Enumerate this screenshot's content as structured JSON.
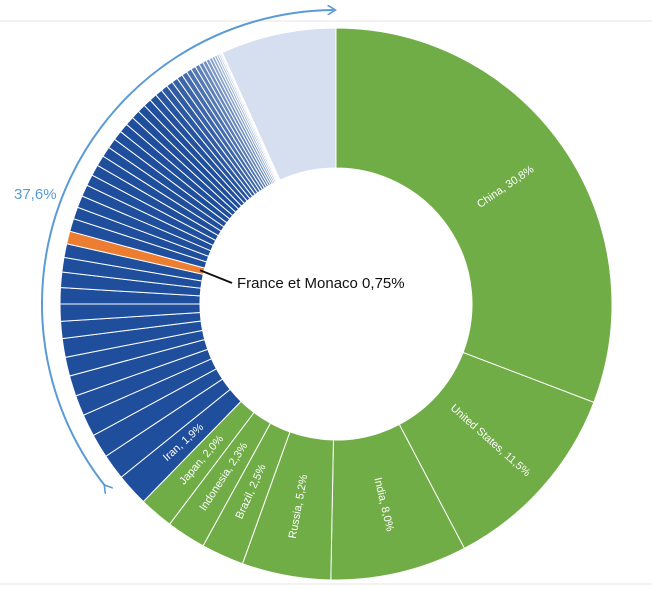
{
  "chart_data": {
    "type": "pie",
    "variant": "donut",
    "title": "",
    "slices": [
      {
        "label": "China",
        "value": 30.8,
        "display": "China, 30,8%",
        "color": "#70ad47"
      },
      {
        "label": "United States",
        "value": 11.5,
        "display": "United States, 11,5%",
        "color": "#70ad47"
      },
      {
        "label": "India",
        "value": 8.0,
        "display": "India, 8,0%",
        "color": "#70ad47"
      },
      {
        "label": "Russia",
        "value": 5.2,
        "display": "Russia, 5,2%",
        "color": "#70ad47"
      },
      {
        "label": "Brazil",
        "value": 2.5,
        "display": "Brazil, 2,5%",
        "color": "#70ad47"
      },
      {
        "label": "Indonesia",
        "value": 2.3,
        "display": "Indonesia, 2,3%",
        "color": "#70ad47"
      },
      {
        "label": "Japan",
        "value": 2.0,
        "display": "Japan, 2,0%",
        "color": "#70ad47"
      },
      {
        "label": "Iran",
        "value": 1.9,
        "display": "Iran, 1,9%",
        "color": "#1f4e9c"
      }
    ],
    "other_countries": {
      "values": [
        1.5,
        1.4,
        1.3,
        1.2,
        1.2,
        1.1,
        1.1,
        1.0,
        1.0,
        0.95,
        0.9,
        0.85,
        0.8,
        0.75,
        0.75,
        0.7,
        0.7,
        0.68,
        0.66,
        0.64,
        0.62,
        0.6,
        0.58,
        0.56,
        0.54,
        0.52,
        0.5,
        0.48,
        0.46,
        0.44,
        0.42,
        0.4,
        0.38,
        0.36,
        0.34,
        0.32,
        0.3,
        0.28,
        0.26,
        0.24,
        0.22,
        0.2,
        0.18,
        0.16,
        0.14,
        0.12,
        0.1,
        0.08,
        0.06
      ],
      "color_dark": "#1f4e9c",
      "color_light": "#dbe5f4"
    },
    "remainder": {
      "value": 1.6,
      "color": "#d6dff0"
    },
    "highlight": {
      "label": "France et Monaco 0,75%",
      "value": 0.75,
      "index_in_other": 13,
      "color": "#ed7d31"
    },
    "bracket_label": "37,6%",
    "bracket_color": "#5b9bd5"
  }
}
